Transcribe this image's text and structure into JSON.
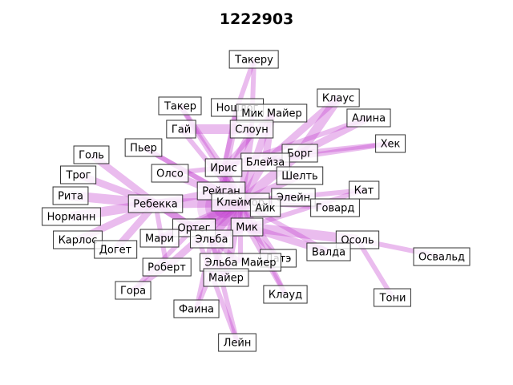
{
  "title": "1222903",
  "colors": {
    "edge": "#c23fcf",
    "node_border": "#333333",
    "background": "#ffffff"
  },
  "nodes": [
    {
      "id": "takeru",
      "label": "Такеру"
    },
    {
      "id": "klaus",
      "label": "Клаус"
    },
    {
      "id": "taker",
      "label": "Такер"
    },
    {
      "id": "noshlog",
      "label": "Ношлог"
    },
    {
      "id": "mikmayer_top",
      "label": "Мик Майер"
    },
    {
      "id": "alina",
      "label": "Алина"
    },
    {
      "id": "gay",
      "label": "Гай"
    },
    {
      "id": "sloun",
      "label": "Слоун"
    },
    {
      "id": "hek",
      "label": "Хек"
    },
    {
      "id": "goll",
      "label": "Голь"
    },
    {
      "id": "pyer",
      "label": "Пьер"
    },
    {
      "id": "borg",
      "label": "Борг"
    },
    {
      "id": "bleyza",
      "label": "Блейза"
    },
    {
      "id": "trog",
      "label": "Трог"
    },
    {
      "id": "olso",
      "label": "Олсо"
    },
    {
      "id": "iris",
      "label": "Ирис"
    },
    {
      "id": "sheltt",
      "label": "Шелть"
    },
    {
      "id": "kat",
      "label": "Кат"
    },
    {
      "id": "rita",
      "label": "Рита"
    },
    {
      "id": "reygan",
      "label": "Рейган"
    },
    {
      "id": "eleyn",
      "label": "Элейн"
    },
    {
      "id": "rebekka",
      "label": "Ребекка"
    },
    {
      "id": "kleymor",
      "label": "Клеймор"
    },
    {
      "id": "ayk",
      "label": "Айк"
    },
    {
      "id": "govard",
      "label": "Говард"
    },
    {
      "id": "normann",
      "label": "Норманн"
    },
    {
      "id": "orteg",
      "label": "Ортег"
    },
    {
      "id": "mik",
      "label": "Мик"
    },
    {
      "id": "mari",
      "label": "Мари"
    },
    {
      "id": "elba",
      "label": "Эльба"
    },
    {
      "id": "karlos",
      "label": "Карлос"
    },
    {
      "id": "osol",
      "label": "Осоль"
    },
    {
      "id": "doget",
      "label": "Догет"
    },
    {
      "id": "valda",
      "label": "Валда"
    },
    {
      "id": "osvald",
      "label": "Освальд"
    },
    {
      "id": "date",
      "label": "Датэ"
    },
    {
      "id": "elbamayer",
      "label": "Эльба Майер"
    },
    {
      "id": "robert",
      "label": "Роберт"
    },
    {
      "id": "mayer",
      "label": "Майер"
    },
    {
      "id": "gora",
      "label": "Гора"
    },
    {
      "id": "klaud",
      "label": "Клауд"
    },
    {
      "id": "toni",
      "label": "Тони"
    },
    {
      "id": "faina",
      "label": "Фаина"
    },
    {
      "id": "leyn",
      "label": "Лейн"
    }
  ],
  "edges": [
    {
      "source": "takeru",
      "target": "sloun",
      "weight": 1
    },
    {
      "source": "klaus",
      "target": "borg",
      "weight": 3
    },
    {
      "source": "klaus",
      "target": "bleyza",
      "weight": 2
    },
    {
      "source": "alina",
      "target": "borg",
      "weight": 2
    },
    {
      "source": "alina",
      "target": "iris",
      "weight": 1
    },
    {
      "source": "hek",
      "target": "borg",
      "weight": 1
    },
    {
      "source": "hek",
      "target": "bleyza",
      "weight": 1
    },
    {
      "source": "mikmayer_top",
      "target": "bleyza",
      "weight": 2
    },
    {
      "source": "mikmayer_top",
      "target": "kleymor",
      "weight": 2
    },
    {
      "source": "mikmayer_top",
      "target": "iris",
      "weight": 1
    },
    {
      "source": "noshlog",
      "target": "reygan",
      "weight": 2
    },
    {
      "source": "noshlog",
      "target": "iris",
      "weight": 1
    },
    {
      "source": "taker",
      "target": "iris",
      "weight": 1
    },
    {
      "source": "taker",
      "target": "kleymor",
      "weight": 1
    },
    {
      "source": "gay",
      "target": "sloun",
      "weight": 3
    },
    {
      "source": "gay",
      "target": "kleymor",
      "weight": 1
    },
    {
      "source": "sloun",
      "target": "kleymor",
      "weight": 2
    },
    {
      "source": "sloun",
      "target": "reygan",
      "weight": 2
    },
    {
      "source": "pyer",
      "target": "reygan",
      "weight": 1
    },
    {
      "source": "pyer",
      "target": "kleymor",
      "weight": 1
    },
    {
      "source": "goll",
      "target": "rebekka",
      "weight": 2
    },
    {
      "source": "trog",
      "target": "rebekka",
      "weight": 2
    },
    {
      "source": "rita",
      "target": "rebekka",
      "weight": 3
    },
    {
      "source": "normann",
      "target": "rebekka",
      "weight": 3
    },
    {
      "source": "karlos",
      "target": "rebekka",
      "weight": 2
    },
    {
      "source": "doget",
      "target": "rebekka",
      "weight": 2
    },
    {
      "source": "rebekka",
      "target": "kleymor",
      "weight": 3
    },
    {
      "source": "rebekka",
      "target": "reygan",
      "weight": 2
    },
    {
      "source": "rebekka",
      "target": "elba",
      "weight": 2
    },
    {
      "source": "rebekka",
      "target": "orteg",
      "weight": 2
    },
    {
      "source": "rebekka",
      "target": "robert",
      "weight": 1
    },
    {
      "source": "olso",
      "target": "kleymor",
      "weight": 2
    },
    {
      "source": "olso",
      "target": "iris",
      "weight": 1
    },
    {
      "source": "borg",
      "target": "kleymor",
      "weight": 3
    },
    {
      "source": "borg",
      "target": "bleyza",
      "weight": 2
    },
    {
      "source": "bleyza",
      "target": "kleymor",
      "weight": 2
    },
    {
      "source": "sheltt",
      "target": "kleymor",
      "weight": 2
    },
    {
      "source": "eleyn",
      "target": "kleymor",
      "weight": 2
    },
    {
      "source": "kat",
      "target": "kleymor",
      "weight": 1
    },
    {
      "source": "kat",
      "target": "mik",
      "weight": 1
    },
    {
      "source": "govard",
      "target": "kleymor",
      "weight": 1
    },
    {
      "source": "iris",
      "target": "kleymor",
      "weight": 2
    },
    {
      "source": "reygan",
      "target": "kleymor",
      "weight": 3
    },
    {
      "source": "ayk",
      "target": "kleymor",
      "weight": 2
    },
    {
      "source": "orteg",
      "target": "kleymor",
      "weight": 3
    },
    {
      "source": "mik",
      "target": "kleymor",
      "weight": 2
    },
    {
      "source": "mik",
      "target": "osol",
      "weight": 3
    },
    {
      "source": "mik",
      "target": "valda",
      "weight": 2
    },
    {
      "source": "mik",
      "target": "elba",
      "weight": 2
    },
    {
      "source": "osol",
      "target": "osvald",
      "weight": 1
    },
    {
      "source": "osol",
      "target": "toni",
      "weight": 1
    },
    {
      "source": "mari",
      "target": "kleymor",
      "weight": 2
    },
    {
      "source": "mari",
      "target": "orteg",
      "weight": 1
    },
    {
      "source": "elba",
      "target": "kleymor",
      "weight": 2
    },
    {
      "source": "elba",
      "target": "mayer",
      "weight": 2
    },
    {
      "source": "elba",
      "target": "elbamayer",
      "weight": 1
    },
    {
      "source": "date",
      "target": "kleymor",
      "weight": 1
    },
    {
      "source": "date",
      "target": "mik",
      "weight": 1
    },
    {
      "source": "elbamayer",
      "target": "kleymor",
      "weight": 1
    },
    {
      "source": "robert",
      "target": "kleymor",
      "weight": 2
    },
    {
      "source": "mayer",
      "target": "kleymor",
      "weight": 2
    },
    {
      "source": "gora",
      "target": "orteg",
      "weight": 1
    },
    {
      "source": "gora",
      "target": "robert",
      "weight": 1
    },
    {
      "source": "klaud",
      "target": "kleymor",
      "weight": 1
    },
    {
      "source": "klaud",
      "target": "mik",
      "weight": 1
    },
    {
      "source": "faina",
      "target": "kleymor",
      "weight": 1
    },
    {
      "source": "faina",
      "target": "elba",
      "weight": 1
    },
    {
      "source": "leyn",
      "target": "elba",
      "weight": 1
    },
    {
      "source": "leyn",
      "target": "orteg",
      "weight": 1
    },
    {
      "source": "valda",
      "target": "kleymor",
      "weight": 1
    },
    {
      "source": "takeru",
      "target": "noshlog",
      "weight": 1
    }
  ]
}
